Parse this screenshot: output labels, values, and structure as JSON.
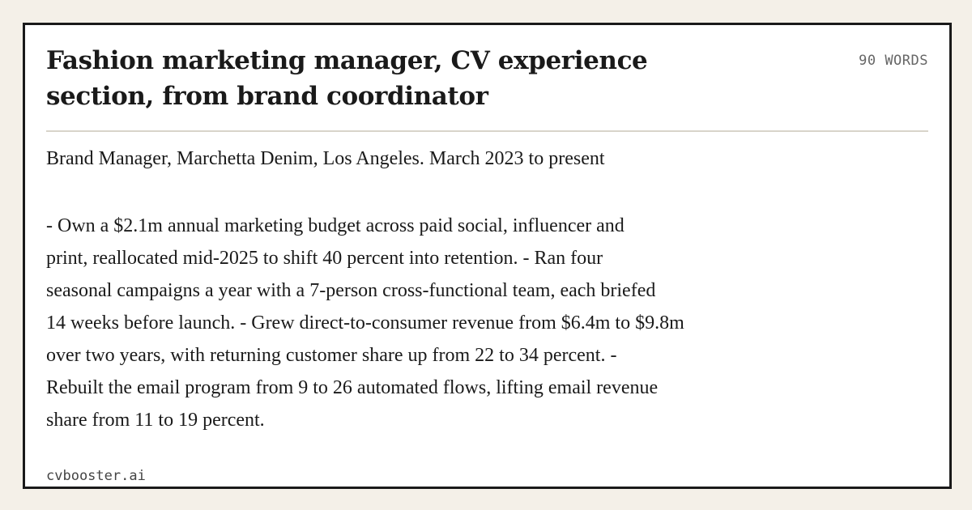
{
  "card": {
    "title": "Fashion marketing manager, CV experience section, from brand coordinator",
    "word_count": "90 WORDS",
    "role_line": "Brand Manager, Marchetta Denim, Los Angeles. March 2023 to present",
    "body_lines": [
      "- Own a $2.1m annual marketing budget across paid social, influencer and",
      "print, reallocated mid-2025 to shift 40 percent into retention. - Ran four",
      "seasonal campaigns a year with a 7-person cross-functional team, each briefed",
      "14 weeks before launch. - Grew direct-to-consumer revenue from $6.4m to $9.8m",
      "over two years, with returning customer share up from 22 to 34 percent. -",
      "Rebuilt the email program from 9 to 26 automated flows, lifting email revenue",
      "share from 11 to 19 percent."
    ]
  },
  "footer": {
    "brand": "cvbooster.ai"
  },
  "colors": {
    "background": "#f4f0e8",
    "card": "#ffffff",
    "border": "#1a1a1a",
    "divider": "#d8d4ca",
    "muted": "#666666"
  }
}
